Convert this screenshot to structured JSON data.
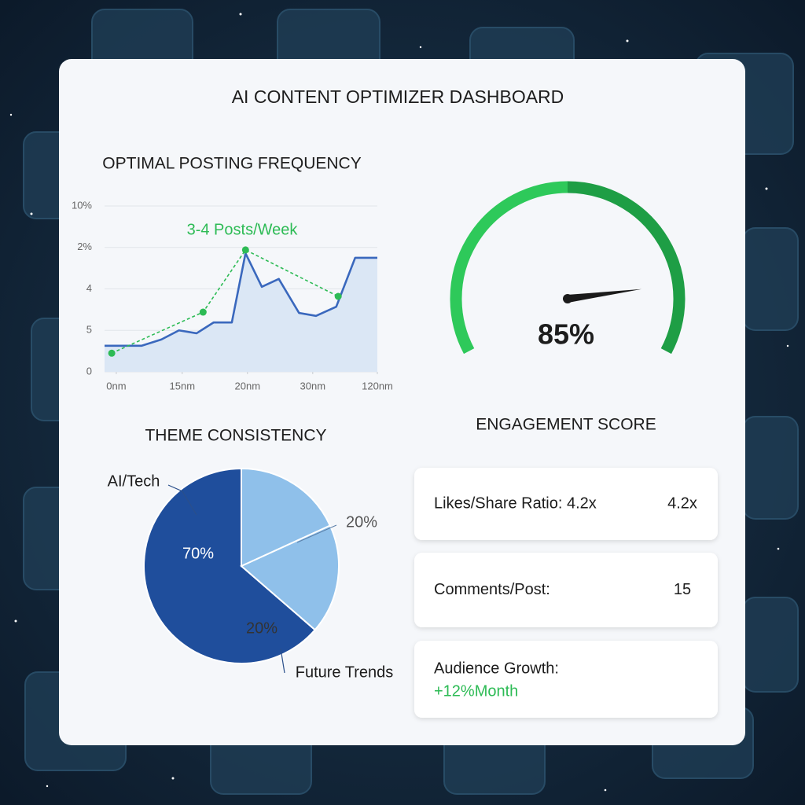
{
  "title": "AI CONTENT OPTIMIZER DASHBOARD",
  "chart_data": [
    {
      "type": "line",
      "title": "OPTIMAL POSTING FREQUENCY",
      "annotation": "3-4 Posts/Week",
      "xlim": [
        0,
        4.18
      ],
      "xticks": [
        {
          "value": 0.18,
          "label": "0nm"
        },
        {
          "value": 1.19,
          "label": "15nm"
        },
        {
          "value": 2.19,
          "label": "20nm"
        },
        {
          "value": 3.19,
          "label": "30nm"
        },
        {
          "value": 4.18,
          "label": "120nm"
        }
      ],
      "ylim": [
        0,
        4
      ],
      "yticks": [
        0,
        {
          "value": 1,
          "label": "5"
        },
        {
          "value": 2,
          "label": "4"
        },
        {
          "value": 3,
          "label": "2%"
        },
        {
          "value": 4,
          "label": "10%"
        }
      ],
      "grid": true,
      "series": [
        {
          "color": "#3a68bd",
          "fill": "#dbe7f5",
          "x": [
            0,
            0.57,
            0.87,
            1.14,
            1.41,
            1.67,
            1.95,
            2.16,
            2.41,
            2.67,
            2.98,
            3.24,
            3.55,
            3.84,
            4.18
          ],
          "values": [
            0.63,
            0.63,
            0.78,
            1.0,
            0.93,
            1.19,
            1.19,
            2.86,
            2.05,
            2.24,
            1.42,
            1.35,
            1.57,
            2.75,
            2.75
          ]
        },
        {
          "color": "#2dbb55",
          "dashed": true,
          "x": [
            0.11,
            1.51,
            2.16,
            3.58
          ],
          "values": [
            0.45,
            1.44,
            2.94,
            1.82
          ]
        }
      ]
    },
    {
      "type": "gauge",
      "value": 85,
      "value_label": "85%",
      "ylim": [
        0,
        100
      ],
      "colors": [
        "#2ec95a",
        "#1e9e45"
      ]
    },
    {
      "type": "pie",
      "title": "THEME CONSISTENCY",
      "categories": [
        "AI/Tech",
        null,
        "Future Trends"
      ],
      "values": [
        70,
        20,
        20
      ],
      "value_labels": [
        "70%",
        "20%",
        "20%"
      ],
      "colors": [
        "#1f4e9c",
        "#8fc0ea",
        "#8fc0ea"
      ]
    }
  ],
  "engagement": {
    "title": "ENGAGEMENT SCORE",
    "cards": [
      {
        "label": "Likes/Share Ratio: 4.2x",
        "value": "4.2x"
      },
      {
        "label": "Comments/Post:",
        "value": "15"
      },
      {
        "label": "Audience Growth:",
        "value": "+12%Month"
      }
    ]
  }
}
